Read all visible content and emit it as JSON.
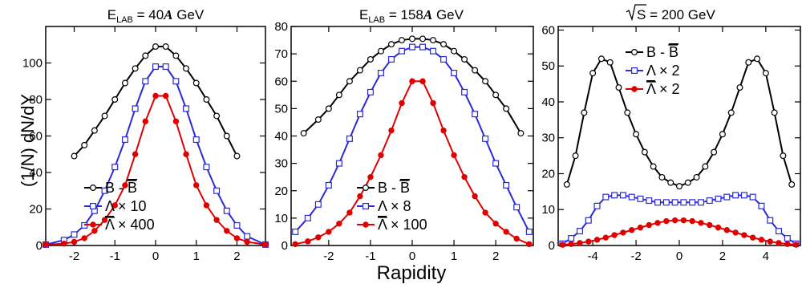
{
  "figure": {
    "ylabel": "(1/N) dN/dY",
    "xlabel": "Rapidity"
  },
  "chart_data": [
    {
      "type": "line",
      "title": "E_LAB = 40A GeV",
      "title_parts": {
        "main": "E",
        "sub": "LAB",
        "rest": " = 40",
        "italic": "A",
        "unit": " GeV"
      },
      "xlim": [
        -2.7,
        2.7
      ],
      "ylim": [
        0,
        120
      ],
      "xticks": [
        -2,
        -1,
        0,
        1,
        2
      ],
      "yticks": [
        0,
        20,
        40,
        60,
        80,
        100
      ],
      "legend_position": "bottom-left",
      "series": [
        {
          "name": "B - B̄",
          "legend": {
            "base": "B - ",
            "bar": "B",
            "suffix": ""
          },
          "color": "#000000",
          "marker": "circle",
          "x": [
            -2.0,
            -1.75,
            -1.5,
            -1.25,
            -1.0,
            -0.75,
            -0.5,
            -0.25,
            0.0,
            0.25,
            0.5,
            0.75,
            1.0,
            1.25,
            1.5,
            1.75,
            2.0
          ],
          "y": [
            49,
            55,
            63,
            71,
            80,
            89,
            97,
            104,
            109,
            109,
            104,
            97,
            89,
            80,
            71,
            60,
            49
          ]
        },
        {
          "name": "Λ × 10",
          "legend": {
            "base": "Λ",
            "bar": "",
            "suffix": " × 10"
          },
          "color": "#2a2ad6",
          "marker": "square",
          "x": [
            -2.7,
            -2.25,
            -2.0,
            -1.75,
            -1.5,
            -1.25,
            -1.0,
            -0.75,
            -0.5,
            -0.25,
            0.0,
            0.25,
            0.5,
            0.75,
            1.0,
            1.25,
            1.5,
            1.75,
            2.0,
            2.25,
            2.7
          ],
          "y": [
            0.5,
            3,
            6,
            11,
            19,
            30,
            43,
            58,
            75,
            90,
            98,
            98,
            90,
            75,
            58,
            43,
            30,
            19,
            11,
            5,
            0.5
          ]
        },
        {
          "name": "Λ̄ × 400",
          "legend": {
            "base": "",
            "bar": "Λ",
            "suffix": " × 400"
          },
          "color": "#e00000",
          "marker": "dot",
          "x": [
            -2.7,
            -2.25,
            -2.0,
            -1.75,
            -1.5,
            -1.25,
            -1.0,
            -0.75,
            -0.5,
            -0.25,
            0.0,
            0.25,
            0.5,
            0.75,
            1.0,
            1.25,
            1.5,
            1.75,
            2.0,
            2.25,
            2.7
          ],
          "y": [
            0.5,
            1,
            2,
            4,
            8,
            14,
            22,
            33,
            50,
            68,
            82,
            82,
            68,
            50,
            33,
            22,
            14,
            8,
            4,
            2,
            0.5
          ]
        }
      ]
    },
    {
      "type": "line",
      "title": "E_LAB = 158A GeV",
      "title_parts": {
        "main": "E",
        "sub": "LAB",
        "rest": " = 158",
        "italic": "A",
        "unit": " GeV"
      },
      "xlim": [
        -2.9,
        2.9
      ],
      "ylim": [
        0,
        80
      ],
      "xticks": [
        -2,
        -1,
        0,
        1,
        2
      ],
      "yticks": [
        0,
        10,
        20,
        30,
        40,
        50,
        60,
        70,
        80
      ],
      "legend_position": "bottom-center",
      "series": [
        {
          "name": "B - B̄",
          "legend": {
            "base": "B - ",
            "bar": "B",
            "suffix": ""
          },
          "color": "#000000",
          "marker": "circle",
          "x": [
            -2.6,
            -2.25,
            -2.0,
            -1.75,
            -1.5,
            -1.25,
            -1.0,
            -0.75,
            -0.5,
            -0.25,
            0.0,
            0.25,
            0.5,
            0.75,
            1.0,
            1.25,
            1.5,
            1.75,
            2.0,
            2.25,
            2.6
          ],
          "y": [
            41,
            46,
            50,
            55,
            60,
            64,
            68,
            71,
            73.5,
            75,
            75.5,
            75.5,
            75,
            73.5,
            71,
            68,
            64,
            60,
            55,
            50,
            41
          ]
        },
        {
          "name": "Λ × 8",
          "legend": {
            "base": "Λ",
            "bar": "",
            "suffix": " × 8"
          },
          "color": "#2a2ad6",
          "marker": "square",
          "x": [
            -2.8,
            -2.5,
            -2.25,
            -2.0,
            -1.75,
            -1.5,
            -1.25,
            -1.0,
            -0.75,
            -0.5,
            -0.25,
            0.0,
            0.25,
            0.5,
            0.75,
            1.0,
            1.25,
            1.5,
            1.75,
            2.0,
            2.25,
            2.5,
            2.8
          ],
          "y": [
            5,
            10,
            15,
            22,
            30,
            39,
            48,
            56,
            63,
            68,
            71,
            72.5,
            72.5,
            71,
            68,
            63,
            56,
            48,
            39,
            30,
            22,
            14,
            5
          ]
        },
        {
          "name": "Λ̄ × 100",
          "legend": {
            "base": "",
            "bar": "Λ",
            "suffix": " × 100"
          },
          "color": "#e00000",
          "marker": "dot",
          "x": [
            -2.8,
            -2.5,
            -2.25,
            -2.0,
            -1.75,
            -1.5,
            -1.25,
            -1.0,
            -0.75,
            -0.5,
            -0.25,
            0.0,
            0.25,
            0.5,
            0.75,
            1.0,
            1.25,
            1.5,
            1.75,
            2.0,
            2.25,
            2.5,
            2.8
          ],
          "y": [
            0.5,
            1.5,
            3,
            5,
            8,
            12,
            18,
            25,
            33,
            42,
            52,
            60,
            60,
            52,
            42,
            33,
            25,
            18,
            12,
            8,
            5,
            2.5,
            0.5
          ]
        }
      ]
    },
    {
      "type": "line",
      "title": "√S = 200 GeV",
      "title_parts": {
        "main": "S",
        "rest": " = 200 GeV"
      },
      "xlim": [
        -5.6,
        5.6
      ],
      "ylim": [
        0,
        61
      ],
      "xticks": [
        -4,
        -2,
        0,
        2,
        4
      ],
      "yticks": [
        0,
        10,
        20,
        30,
        40,
        50,
        60
      ],
      "legend_position": "top-center",
      "series": [
        {
          "name": "B - B̄",
          "legend": {
            "base": "B - ",
            "bar": "B",
            "suffix": ""
          },
          "color": "#000000",
          "marker": "circle",
          "x": [
            -5.2,
            -4.8,
            -4.4,
            -4.0,
            -3.6,
            -3.2,
            -2.8,
            -2.4,
            -2.0,
            -1.6,
            -1.2,
            -0.8,
            -0.4,
            0.0,
            0.4,
            0.8,
            1.2,
            1.6,
            2.0,
            2.4,
            2.8,
            3.2,
            3.6,
            4.0,
            4.4,
            4.8,
            5.2
          ],
          "y": [
            17,
            25,
            37,
            48,
            52,
            51,
            44,
            37,
            31,
            26,
            22,
            19,
            17.5,
            16.5,
            17.5,
            19,
            22,
            26,
            31,
            37,
            44,
            51,
            52,
            48,
            37,
            25,
            17
          ]
        },
        {
          "name": "Λ × 2",
          "legend": {
            "base": "Λ",
            "bar": "",
            "suffix": " × 2"
          },
          "color": "#2a2ad6",
          "marker": "square",
          "x": [
            -5.4,
            -5.0,
            -4.6,
            -4.2,
            -3.8,
            -3.4,
            -3.0,
            -2.6,
            -2.2,
            -1.8,
            -1.4,
            -1.0,
            -0.6,
            -0.2,
            0.2,
            0.6,
            1.0,
            1.4,
            1.8,
            2.2,
            2.6,
            3.0,
            3.4,
            3.8,
            4.2,
            4.6,
            5.0,
            5.4
          ],
          "y": [
            0.5,
            2,
            4,
            7,
            11,
            13.5,
            14,
            14,
            13.5,
            13,
            12.5,
            12,
            12,
            12,
            12,
            12,
            12,
            12.5,
            13,
            13.5,
            14,
            14,
            13.5,
            11,
            7,
            4,
            2,
            0.5
          ]
        },
        {
          "name": "Λ̄ × 2",
          "legend": {
            "base": "",
            "bar": "Λ",
            "suffix": " × 2"
          },
          "color": "#e00000",
          "marker": "dot",
          "x": [
            -5.4,
            -5.0,
            -4.6,
            -4.2,
            -3.8,
            -3.4,
            -3.0,
            -2.6,
            -2.2,
            -1.8,
            -1.4,
            -1.0,
            -0.6,
            -0.2,
            0.2,
            0.6,
            1.0,
            1.4,
            1.8,
            2.2,
            2.6,
            3.0,
            3.4,
            3.8,
            4.2,
            4.6,
            5.0,
            5.4
          ],
          "y": [
            0.2,
            0.4,
            0.7,
            1.1,
            1.6,
            2.2,
            2.9,
            3.6,
            4.3,
            5.0,
            5.7,
            6.3,
            6.8,
            7.0,
            7.0,
            6.8,
            6.3,
            5.7,
            5.0,
            4.3,
            3.6,
            2.9,
            2.2,
            1.6,
            1.1,
            0.7,
            0.4,
            0.2
          ]
        }
      ]
    }
  ]
}
